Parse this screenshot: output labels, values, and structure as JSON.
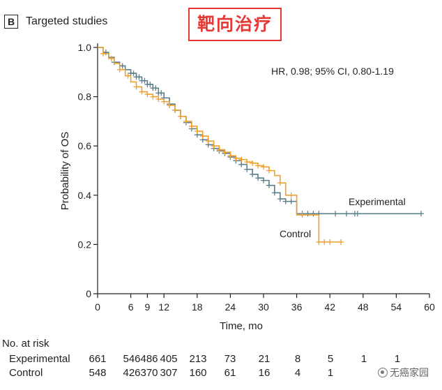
{
  "panel": {
    "letter": "B",
    "title": "Targeted studies"
  },
  "annotation_cn": "靶向治疗",
  "watermark": {
    "text": "无癌家园",
    "icon": "wechat-icon"
  },
  "colors": {
    "experimental": "#5a7f8d",
    "control": "#f0a02c",
    "axis": "#231f20"
  },
  "chart_data": {
    "type": "line",
    "subtype": "kaplan-meier",
    "xlabel": "Time, mo",
    "ylabel": "Probability of OS",
    "xlim": [
      0,
      60
    ],
    "ylim": [
      0,
      1.0
    ],
    "xticks": [
      0,
      6,
      9,
      12,
      18,
      24,
      30,
      36,
      42,
      48,
      54,
      60
    ],
    "yticks": [
      0,
      0.2,
      0.4,
      0.6,
      0.8,
      1.0
    ],
    "ytick_labels": [
      "0",
      "0.2",
      "0.4",
      "0.6",
      "0.8",
      "1.0"
    ],
    "hr_text": "HR, 0.98; 95% CI, 0.80-1.19",
    "legend_position": "inline labels on curves",
    "series": [
      {
        "name": "Experimental",
        "color": "#5a7f8d",
        "x": [
          0,
          1,
          2,
          3,
          4,
          5,
          6,
          7,
          8,
          9,
          10,
          11,
          12,
          13,
          14,
          15,
          16,
          17,
          18,
          19,
          20,
          21,
          22,
          23,
          24,
          25,
          26,
          27,
          28,
          29,
          30,
          31,
          32,
          33,
          34,
          35,
          36,
          58.5
        ],
        "y": [
          1.0,
          0.98,
          0.96,
          0.94,
          0.925,
          0.91,
          0.895,
          0.88,
          0.865,
          0.85,
          0.835,
          0.815,
          0.795,
          0.77,
          0.745,
          0.72,
          0.695,
          0.67,
          0.645,
          0.625,
          0.605,
          0.59,
          0.58,
          0.57,
          0.555,
          0.54,
          0.525,
          0.505,
          0.485,
          0.47,
          0.46,
          0.44,
          0.41,
          0.385,
          0.375,
          0.375,
          0.325,
          0.325
        ],
        "censor_x": [
          1.5,
          3,
          4.5,
          6,
          6.5,
          7,
          7.5,
          8,
          8.5,
          9,
          9.5,
          10,
          10.5,
          11,
          11.5,
          12,
          13,
          14,
          15,
          16,
          17,
          18,
          19,
          20,
          21,
          22,
          23,
          24,
          25,
          26,
          27,
          28,
          29,
          30,
          31,
          32,
          33,
          34,
          35,
          37,
          38,
          39,
          40,
          43,
          45,
          46.5,
          47,
          58.5
        ]
      },
      {
        "name": "Control",
        "color": "#f0a02c",
        "x": [
          0,
          1,
          2,
          3,
          4,
          5,
          6,
          7,
          8,
          9,
          10,
          11,
          12,
          13,
          14,
          15,
          16,
          17,
          18,
          19,
          20,
          21,
          22,
          23,
          24,
          25,
          26,
          27,
          28,
          29,
          30,
          31,
          32,
          33,
          34,
          35,
          36,
          40,
          44
        ],
        "y": [
          1.0,
          0.975,
          0.955,
          0.935,
          0.91,
          0.885,
          0.86,
          0.84,
          0.82,
          0.81,
          0.8,
          0.79,
          0.78,
          0.765,
          0.745,
          0.72,
          0.7,
          0.68,
          0.66,
          0.64,
          0.62,
          0.6,
          0.585,
          0.575,
          0.56,
          0.55,
          0.545,
          0.535,
          0.53,
          0.52,
          0.515,
          0.5,
          0.48,
          0.45,
          0.4,
          0.4,
          0.32,
          0.21,
          0.21
        ],
        "censor_x": [
          1,
          2.5,
          4,
          5.5,
          7,
          8,
          9,
          10,
          11,
          12,
          13,
          14,
          15,
          16,
          17,
          18,
          19,
          20,
          21,
          22,
          23,
          24,
          25,
          26,
          27,
          28,
          29,
          30,
          31,
          33,
          35,
          37,
          40,
          41,
          42,
          44
        ]
      }
    ]
  },
  "risk_table": {
    "header": "No. at risk",
    "rows": [
      {
        "label": "Experimental",
        "values": [
          "661",
          "546",
          "486",
          "405",
          "213",
          "73",
          "21",
          "8",
          "5",
          "1",
          "1"
        ]
      },
      {
        "label": "Control",
        "values": [
          "548",
          "426",
          "370",
          "307",
          "160",
          "61",
          "16",
          "4",
          "1",
          "",
          ""
        ]
      }
    ]
  }
}
